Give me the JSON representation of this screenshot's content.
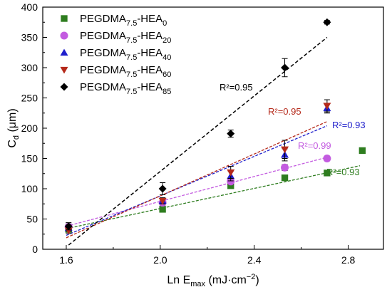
{
  "chart_data": {
    "type": "scatter",
    "xlabel": {
      "main": "Ln E",
      "sub": "max",
      "rest": " (mJ·cm",
      "sup": "−2",
      "end": ")"
    },
    "ylabel": {
      "main": "C",
      "sub": "d",
      "rest": " (μm)"
    },
    "xlim": [
      1.5,
      2.95
    ],
    "ylim": [
      0,
      400
    ],
    "xticks": [
      "1.6",
      "2.0",
      "2.4",
      "2.8"
    ],
    "yticks": [
      "0",
      "50",
      "100",
      "150",
      "200",
      "250",
      "300",
      "350",
      "400"
    ],
    "legend_position": "top-left",
    "series": [
      {
        "name": {
          "base": "PEGDMA",
          "sub1": "7.5",
          "mid": "-HEA",
          "sub2": "0"
        },
        "color": "#2e7d1f",
        "marker": "square",
        "points": [
          [
            1.61,
            33,
            5
          ],
          [
            2.01,
            66,
            3
          ],
          [
            2.3,
            105,
            3
          ],
          [
            2.53,
            118,
            3
          ],
          [
            2.71,
            126,
            3
          ],
          [
            2.86,
            163,
            3
          ]
        ],
        "fit": {
          "x0": 1.6,
          "x1": 2.85,
          "y0": 34,
          "y1": 138,
          "color": "#2e7d1f"
        },
        "r2": "R²=0.93"
      },
      {
        "name": {
          "base": "PEGDMA",
          "sub1": "7.5",
          "mid": "-HEA",
          "sub2": "20"
        },
        "color": "#c35be0",
        "marker": "circle",
        "points": [
          [
            1.61,
            37,
            5
          ],
          [
            2.01,
            77,
            5
          ],
          [
            2.3,
            112,
            5
          ],
          [
            2.53,
            135,
            5
          ],
          [
            2.71,
            150,
            4
          ]
        ],
        "fit": {
          "x0": 1.6,
          "x1": 2.71,
          "y0": 38,
          "y1": 152,
          "color": "#c35be0"
        },
        "r2": "R²=0.99"
      },
      {
        "name": {
          "base": "PEGDMA",
          "sub1": "7.5",
          "mid": "-HEA",
          "sub2": "40"
        },
        "color": "#1f1fcc",
        "marker": "triangle-up",
        "points": [
          [
            1.61,
            35,
            5
          ],
          [
            2.01,
            80,
            5
          ],
          [
            2.3,
            121,
            8
          ],
          [
            2.53,
            156,
            10
          ],
          [
            2.71,
            233,
            8
          ]
        ],
        "fit": {
          "x0": 1.6,
          "x1": 2.71,
          "y0": 23,
          "y1": 204,
          "color": "#1f1fcc"
        },
        "r2": "R²=0.93"
      },
      {
        "name": {
          "base": "PEGDMA",
          "sub1": "7.5",
          "mid": "-HEA",
          "sub2": "60"
        },
        "color": "#b5291a",
        "marker": "triangle-down",
        "points": [
          [
            1.61,
            31,
            5
          ],
          [
            2.01,
            80,
            5
          ],
          [
            2.3,
            127,
            10
          ],
          [
            2.53,
            165,
            15
          ],
          [
            2.71,
            237,
            10
          ]
        ],
        "fit": {
          "x0": 1.6,
          "x1": 2.71,
          "y0": 19,
          "y1": 211,
          "color": "#b5291a"
        },
        "r2": "R²=0.95"
      },
      {
        "name": {
          "base": "PEGDMA",
          "sub1": "7.5",
          "mid": "-HEA",
          "sub2": "85"
        },
        "color": "#000000",
        "marker": "diamond",
        "points": [
          [
            1.61,
            38,
            6
          ],
          [
            2.01,
            100,
            10
          ],
          [
            2.3,
            191,
            6
          ],
          [
            2.53,
            300,
            15
          ],
          [
            2.71,
            375,
            3
          ]
        ],
        "fit": {
          "x0": 1.61,
          "x1": 2.71,
          "y0": 7,
          "y1": 350,
          "color": "#000000"
        },
        "r2": "R²=0.95"
      }
    ]
  }
}
